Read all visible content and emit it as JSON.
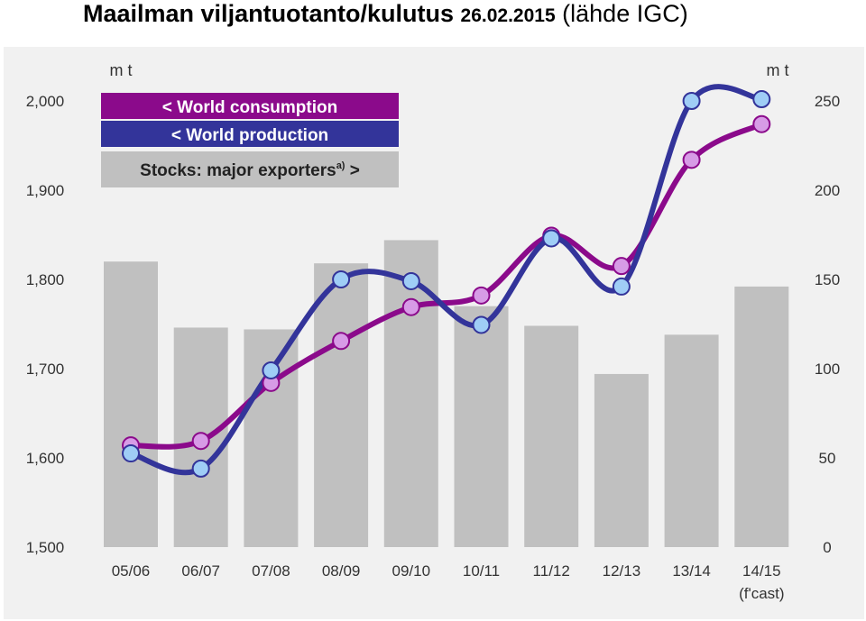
{
  "page": {
    "title_main": "Maailman viljantuotanto/kulutus ",
    "title_date": "26.02.2015",
    "title_source": " (lähde IGC)"
  },
  "chart_data": {
    "type": "bar+line",
    "categories": [
      "05/06",
      "06/07",
      "07/08",
      "08/09",
      "09/10",
      "10/11",
      "11/12",
      "12/13",
      "13/14",
      "14/15"
    ],
    "category_note": "(f'cast)",
    "left_axis": {
      "unit_label": "m t",
      "ylim": [
        1500,
        2000
      ],
      "ticks": [
        "1,500",
        "1,600",
        "1,700",
        "1,800",
        "1,900",
        "2,000"
      ]
    },
    "right_axis": {
      "unit_label": "m t",
      "ylim": [
        0,
        250
      ],
      "ticks": [
        "0",
        "50",
        "100",
        "150",
        "200",
        "250"
      ]
    },
    "series": [
      {
        "name": "< World consumption",
        "type": "line",
        "axis": "left",
        "color": "#8b0a8b",
        "marker_color": "#d79be6",
        "values": [
          1614,
          1619,
          1684,
          1731,
          1769,
          1782,
          1849,
          1815,
          1934,
          1974
        ]
      },
      {
        "name": "< World production",
        "type": "line",
        "axis": "left",
        "color": "#33349a",
        "marker_color": "#9fcdf6",
        "values": [
          1605,
          1588,
          1698,
          1800,
          1798,
          1749,
          1846,
          1792,
          2000,
          2002
        ]
      },
      {
        "name": "Stocks: major exporters",
        "superscript": "a)",
        "suffix": " >",
        "type": "bar",
        "axis": "right",
        "color": "#c0c0c0",
        "values": [
          160,
          123,
          122,
          159,
          172,
          135,
          124,
          97,
          119,
          146
        ]
      }
    ],
    "grid": false,
    "legend_position": "top-left"
  }
}
